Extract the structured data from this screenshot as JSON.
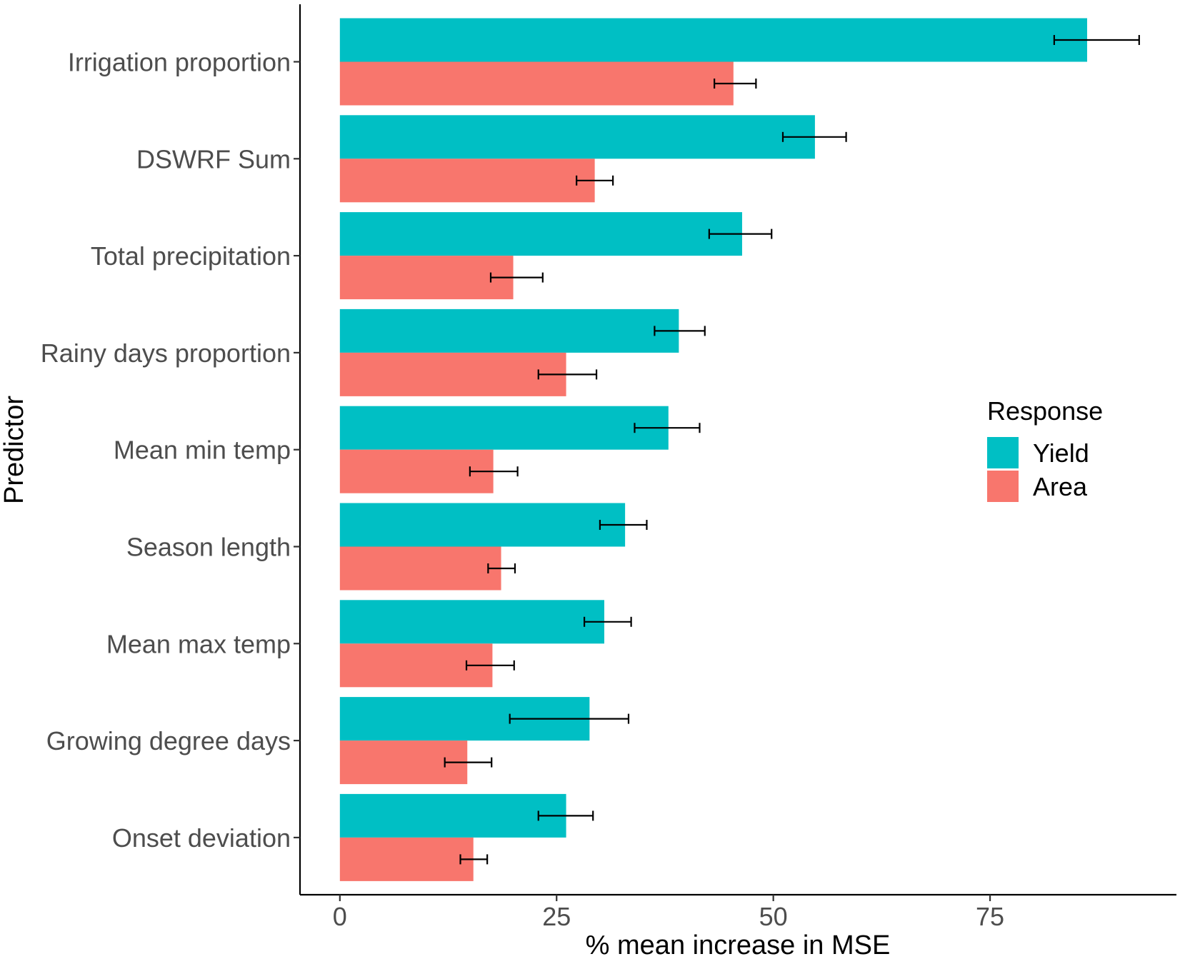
{
  "chart_data": {
    "type": "bar",
    "orientation": "horizontal",
    "xlabel": "% mean increase in MSE",
    "ylabel": "Predictor",
    "xlim": [
      -4.6,
      96.5
    ],
    "xticks": [
      0,
      25,
      50,
      75
    ],
    "grid": false,
    "legend": {
      "title": "Response",
      "position": "right",
      "entries": [
        {
          "name": "Yield",
          "color": "#00BFC4"
        },
        {
          "name": "Area",
          "color": "#F8766D"
        }
      ]
    },
    "categories": [
      "Irrigation proportion",
      "DSWRF Sum",
      "Total precipitation",
      "Rainy days proportion",
      "Mean min temp",
      "Season length",
      "Mean max temp",
      "Growing degree days",
      "Onset deviation"
    ],
    "series": [
      {
        "name": "Yield",
        "color": "#00BFC4",
        "values": [
          86.2,
          54.8,
          46.4,
          39.1,
          37.9,
          32.9,
          30.5,
          28.8,
          26.1
        ],
        "err_low": [
          82.4,
          51.1,
          42.6,
          36.3,
          34.0,
          30.0,
          28.2,
          19.6,
          22.9
        ],
        "err_high": [
          92.2,
          58.4,
          49.8,
          42.1,
          41.5,
          35.4,
          33.6,
          33.3,
          29.2
        ]
      },
      {
        "name": "Area",
        "color": "#F8766D",
        "values": [
          45.4,
          29.4,
          20.0,
          26.1,
          17.7,
          18.6,
          17.6,
          14.7,
          15.4
        ],
        "err_low": [
          43.2,
          27.3,
          17.4,
          22.9,
          15.0,
          17.1,
          14.6,
          12.1,
          13.9
        ],
        "err_high": [
          48.0,
          31.5,
          23.4,
          29.6,
          20.5,
          20.2,
          20.1,
          17.5,
          17.0
        ]
      }
    ]
  }
}
